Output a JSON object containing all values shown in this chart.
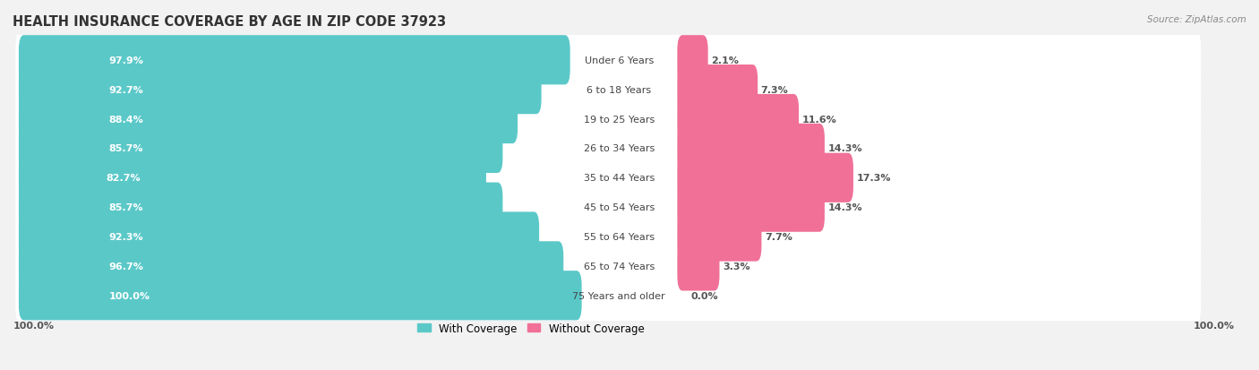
{
  "title": "HEALTH INSURANCE COVERAGE BY AGE IN ZIP CODE 37923",
  "source": "Source: ZipAtlas.com",
  "categories": [
    "Under 6 Years",
    "6 to 18 Years",
    "19 to 25 Years",
    "26 to 34 Years",
    "35 to 44 Years",
    "45 to 54 Years",
    "55 to 64 Years",
    "65 to 74 Years",
    "75 Years and older"
  ],
  "with_coverage": [
    97.9,
    92.7,
    88.4,
    85.7,
    82.7,
    85.7,
    92.3,
    96.7,
    100.0
  ],
  "without_coverage": [
    2.1,
    7.3,
    11.6,
    14.3,
    17.3,
    14.3,
    7.7,
    3.3,
    0.0
  ],
  "color_with": "#5bc8c8",
  "color_without": "#f28cb1",
  "color_without_dark": "#f07098",
  "background_color": "#f2f2f2",
  "row_bg_color": "#e8e8e8",
  "title_fontsize": 10.5,
  "label_fontsize": 8,
  "bar_label_fontsize": 8,
  "legend_fontsize": 8.5,
  "bottom_label": "100.0%"
}
